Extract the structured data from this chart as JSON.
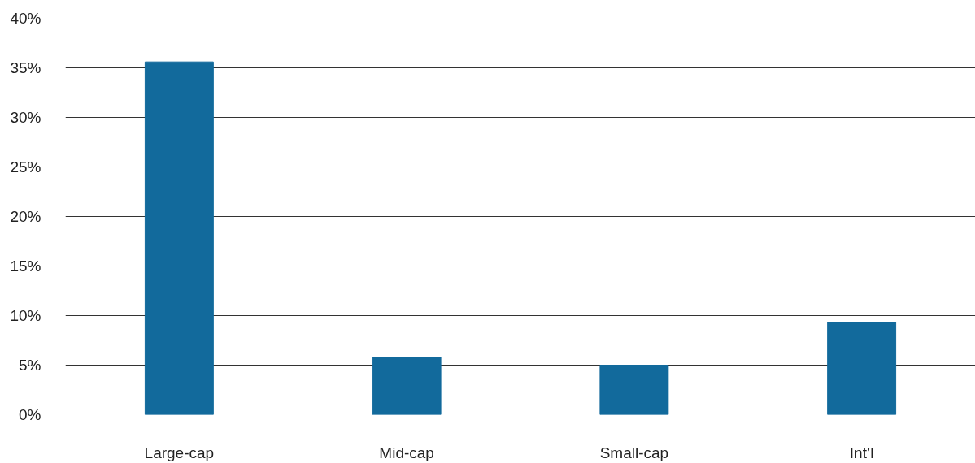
{
  "chart_data": {
    "type": "bar",
    "categories": [
      "Large-cap",
      "Mid-cap",
      "Small-cap",
      "Int’l"
    ],
    "values": [
      35.6,
      5.8,
      5.0,
      9.3
    ],
    "color": "#126a9c",
    "ylim": [
      0,
      40
    ],
    "yticks": [
      {
        "value": 0,
        "label": "0%"
      },
      {
        "value": 5,
        "label": "5%"
      },
      {
        "value": 10,
        "label": "10%"
      },
      {
        "value": 15,
        "label": "15%"
      },
      {
        "value": 20,
        "label": "20%"
      },
      {
        "value": 25,
        "label": "25%"
      },
      {
        "value": 30,
        "label": "30%"
      },
      {
        "value": 35,
        "label": "35%"
      },
      {
        "value": 40,
        "label": "40%"
      }
    ],
    "grid": "y"
  }
}
